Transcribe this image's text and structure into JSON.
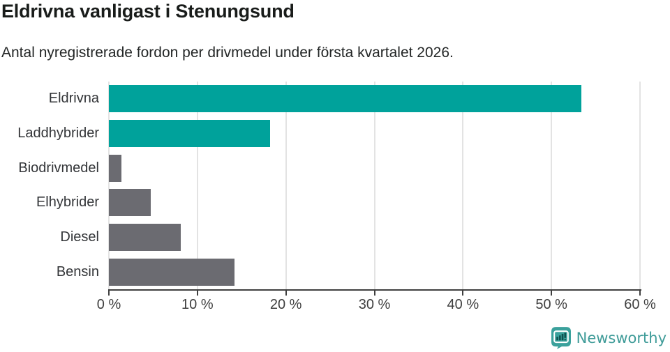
{
  "header": {
    "title": "Eldrivna vanligast i Stenungsund",
    "subtitle": "Antal nyregistrerade fordon per drivmedel under första kvartalet 2026."
  },
  "chart_data": {
    "type": "bar",
    "orientation": "horizontal",
    "title": "Eldrivna vanligast i Stenungsund",
    "subtitle": "Antal nyregistrerade fordon per drivmedel under första kvartalet 2026.",
    "categories": [
      "Eldrivna",
      "Laddhybrider",
      "Biodrivmedel",
      "Elhybrider",
      "Diesel",
      "Bensin"
    ],
    "values": [
      53.4,
      18.2,
      1.4,
      4.7,
      8.1,
      14.2
    ],
    "unit": "%",
    "bar_colors": [
      "#00a29b",
      "#00a29b",
      "#6b6b71",
      "#6b6b71",
      "#6b6b71",
      "#6b6b71"
    ],
    "x_ticks": [
      "0 %",
      "10 %",
      "20 %",
      "30 %",
      "40 %",
      "50 %",
      "60 %"
    ],
    "xlim": [
      0,
      60
    ],
    "grid": "vertical-only",
    "legend": "none"
  },
  "colors": {
    "teal": "#00a29b",
    "gray": "#6b6b71",
    "gridline": "#e3e3e3",
    "axis": "#3f3f3f",
    "brand_teal": "#3e9b98",
    "brand_icon_bg": "#3ba19c",
    "brand_icon_marks": "#10514f"
  },
  "footer": {
    "brand": "Newsworthy"
  }
}
